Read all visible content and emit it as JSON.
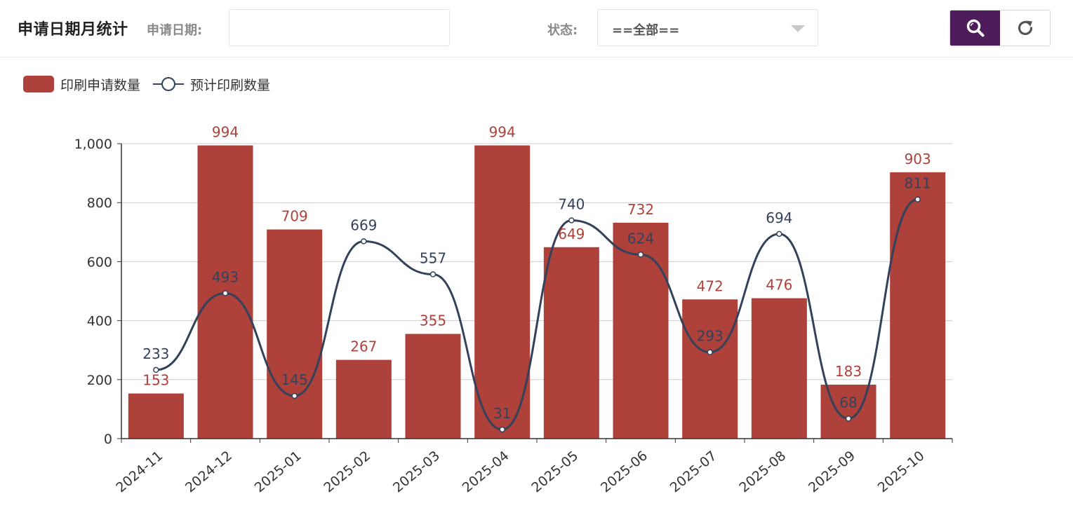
{
  "header": {
    "title": "申请日期月统计",
    "date_label": "申请日期:",
    "date_value": "",
    "date_placeholder": "",
    "status_label": "状态:",
    "status_selected": "==全部=="
  },
  "buttons": {
    "search_icon": "search-icon",
    "refresh_icon": "refresh-icon"
  },
  "colors": {
    "bar": "#ae413a",
    "line": "#34415a",
    "search_button_bg": "#4e1b5b",
    "axis": "#333333",
    "grid": "#cccccc"
  },
  "chart_data": {
    "type": "bar",
    "categories": [
      "2024-11",
      "2024-12",
      "2025-01",
      "2025-02",
      "2025-03",
      "2025-04",
      "2025-05",
      "2025-06",
      "2025-07",
      "2025-08",
      "2025-09",
      "2025-10"
    ],
    "series": [
      {
        "name": "印刷申请数量",
        "type": "bar",
        "values": [
          153,
          994,
          709,
          267,
          355,
          994,
          649,
          732,
          472,
          476,
          183,
          903
        ]
      },
      {
        "name": "预计印刷数量",
        "type": "line",
        "smooth": true,
        "values": [
          233,
          493,
          145,
          669,
          557,
          31,
          740,
          624,
          293,
          694,
          68,
          811
        ]
      }
    ],
    "yticks": [
      "0",
      "200",
      "400",
      "600",
      "800",
      "1,000"
    ],
    "ylim": [
      0,
      1000
    ],
    "grid": true,
    "legend_position": "top-left",
    "data_labels": true
  }
}
